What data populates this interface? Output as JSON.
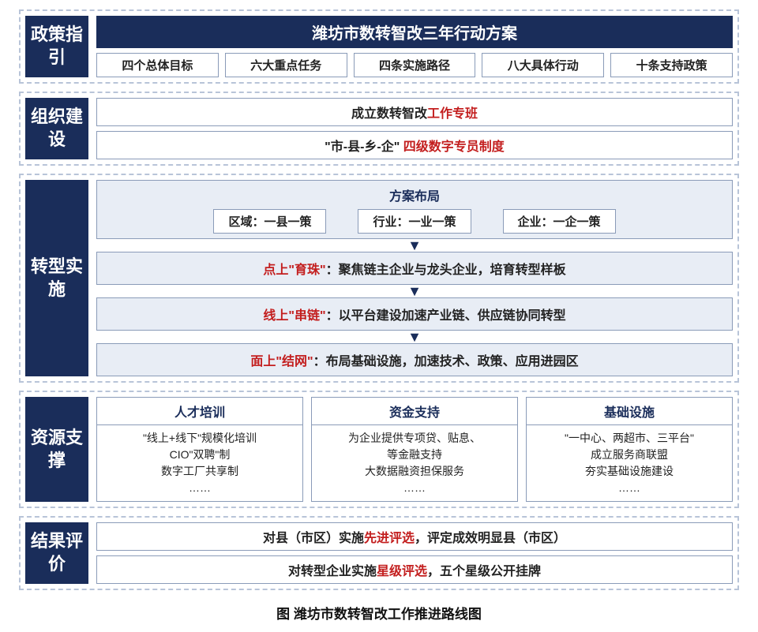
{
  "colors": {
    "primary": "#1a2d5a",
    "accent_red": "#c31e1e",
    "border": "#8a9bb8",
    "panel_bg": "#e8edf5",
    "dashed_border": "#b8c4d8",
    "text": "#222222",
    "background": "#ffffff"
  },
  "sections": {
    "policy": {
      "label": "政策指引",
      "banner": "潍坊市数转智改三年行动方案",
      "items": [
        "四个总体目标",
        "六大重点任务",
        "四条实施路径",
        "八大具体行动",
        "十条支持政策"
      ]
    },
    "org": {
      "label": "组织建设",
      "line1": {
        "prefix": "成立数转智改",
        "red": "工作专班"
      },
      "line2": {
        "prefix": "\"市-县-乡-企\"",
        "red": "四级数字专员制度"
      }
    },
    "impl": {
      "label": "转型实施",
      "layout": {
        "title": "方案布局",
        "items": [
          "区域：一县一策",
          "行业：一业一策",
          "企业：一企一策"
        ]
      },
      "rows": [
        {
          "red": "点上\"育珠\"",
          "rest": "：聚焦链主企业与龙头企业，培育转型样板"
        },
        {
          "red": "线上\"串链\"",
          "rest": "：以平台建设加速产业链、供应链协同转型"
        },
        {
          "red": "面上\"结网\"",
          "rest": "：布局基础设施，加速技术、政策、应用进园区"
        }
      ]
    },
    "resource": {
      "label": "资源支撑",
      "cols": [
        {
          "head": "人才培训",
          "lines": [
            "\"线上+线下\"规模化培训",
            "CIO\"双聘\"制",
            "数字工厂共享制",
            "……"
          ]
        },
        {
          "head": "资金支持",
          "lines": [
            "为企业提供专项贷、贴息、",
            "等金融支持",
            "大数据融资担保服务",
            "……"
          ]
        },
        {
          "head": "基础设施",
          "lines": [
            "\"一中心、两超市、三平台\"",
            "成立服务商联盟",
            "夯实基础设施建设",
            "……"
          ]
        }
      ]
    },
    "result": {
      "label": "结果评价",
      "line1": {
        "p1": "对县（市区）实施",
        "red": "先进评选",
        "p2": "，评定成效明显县（市区）"
      },
      "line2": {
        "p1": "对转型企业实施",
        "red": "星级评选",
        "p2": "，五个星级公开挂牌"
      }
    }
  },
  "caption": "图 潍坊市数转智改工作推进路线图"
}
